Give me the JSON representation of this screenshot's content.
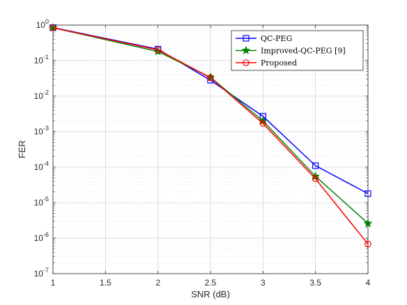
{
  "chart_data": {
    "type": "line",
    "title": "",
    "xlabel": "SNR (dB)",
    "ylabel": "FER",
    "xscale": "linear",
    "yscale": "log",
    "xlim": [
      1,
      4
    ],
    "ylim": [
      1e-07,
      1
    ],
    "xticks": [
      1,
      1.5,
      2,
      2.5,
      3,
      3.5,
      4
    ],
    "xtick_labels": [
      "1",
      "1.5",
      "2",
      "2.5",
      "3",
      "3.5",
      "4"
    ],
    "yticks": [
      1e-07,
      1e-06,
      1e-05,
      0.0001,
      0.001,
      0.01,
      0.1,
      1
    ],
    "ytick_labels": [
      {
        "base": "10",
        "exp": "-7"
      },
      {
        "base": "10",
        "exp": "-6"
      },
      {
        "base": "10",
        "exp": "-5"
      },
      {
        "base": "10",
        "exp": "-4"
      },
      {
        "base": "10",
        "exp": "-3"
      },
      {
        "base": "10",
        "exp": "-2"
      },
      {
        "base": "10",
        "exp": "-1"
      },
      {
        "base": "10",
        "exp": "0"
      }
    ],
    "grid": true,
    "minor_grid": true,
    "legend_position": "top-right",
    "series": [
      {
        "name": "QC-PEG",
        "color": "#0000ff",
        "marker": "square",
        "x": [
          1,
          2,
          2.5,
          3,
          3.5,
          4
        ],
        "y": [
          0.85,
          0.21,
          0.028,
          0.0027,
          0.00011,
          1.8e-05
        ]
      },
      {
        "name": "Improved-QC-PEG [9]",
        "color": "#008000",
        "marker": "star",
        "x": [
          1,
          2,
          2.5,
          3,
          3.5,
          4
        ],
        "y": [
          0.84,
          0.18,
          0.034,
          0.002,
          5.5e-05,
          2.6e-06
        ]
      },
      {
        "name": "Proposed",
        "color": "#ff0000",
        "marker": "circle",
        "x": [
          1,
          2,
          2.5,
          3,
          3.5,
          4
        ],
        "y": [
          0.84,
          0.2,
          0.033,
          0.0017,
          4.7e-05,
          6.8e-07
        ]
      }
    ]
  }
}
